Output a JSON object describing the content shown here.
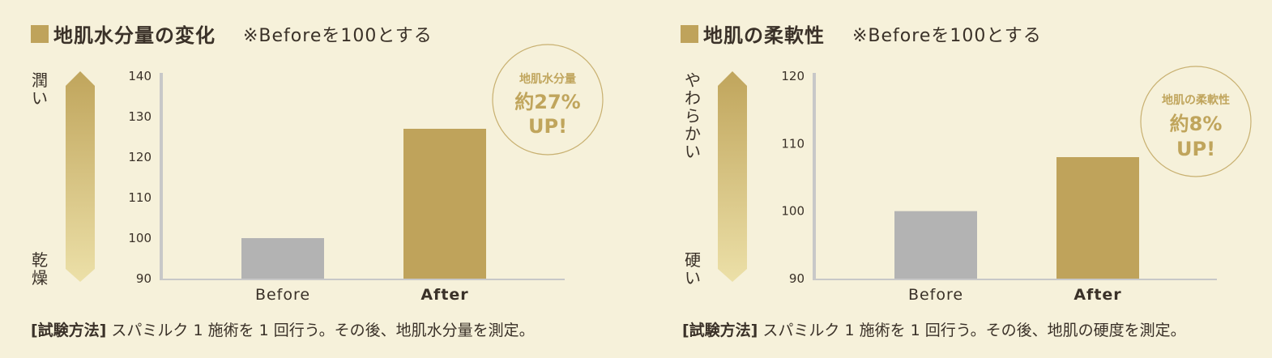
{
  "colors": {
    "background": "#f6f1da",
    "gold": "#bfa35b",
    "gray_bar": "#b3b3b3",
    "axis": "#c8c8c8",
    "gradient_top": "#c0a55c",
    "gradient_bottom": "#ece0a8"
  },
  "chart_data": [
    {
      "type": "bar",
      "title": "地肌水分量の変化",
      "note": "※Beforeを100とする",
      "categories": [
        "Before",
        "After"
      ],
      "values": [
        100,
        127
      ],
      "yticks": [
        "140",
        "130",
        "120",
        "110",
        "100",
        "90"
      ],
      "ylim": [
        90,
        140
      ],
      "scale_top_label": "潤い",
      "scale_bottom_label": "乾燥",
      "badge": {
        "line1": "地肌水分量",
        "line2": "約27%",
        "line3": "UP!"
      },
      "method_label": "[試験方法]",
      "method_text": "スパミルク 1 施術を 1 回行う。その後、地肌水分量を測定。"
    },
    {
      "type": "bar",
      "title": "地肌の柔軟性",
      "note": "※Beforeを100とする",
      "categories": [
        "Before",
        "After"
      ],
      "values": [
        100,
        108
      ],
      "yticks": [
        "120",
        "110",
        "100",
        "90"
      ],
      "ylim": [
        90,
        120
      ],
      "scale_top_label": "やわらかい",
      "scale_bottom_label": "硬い",
      "badge": {
        "line1": "地肌の柔軟性",
        "line2": "約8%",
        "line3": "UP!"
      },
      "method_label": "[試験方法]",
      "method_text": "スパミルク 1 施術を 1 回行う。その後、地肌の硬度を測定。"
    }
  ]
}
